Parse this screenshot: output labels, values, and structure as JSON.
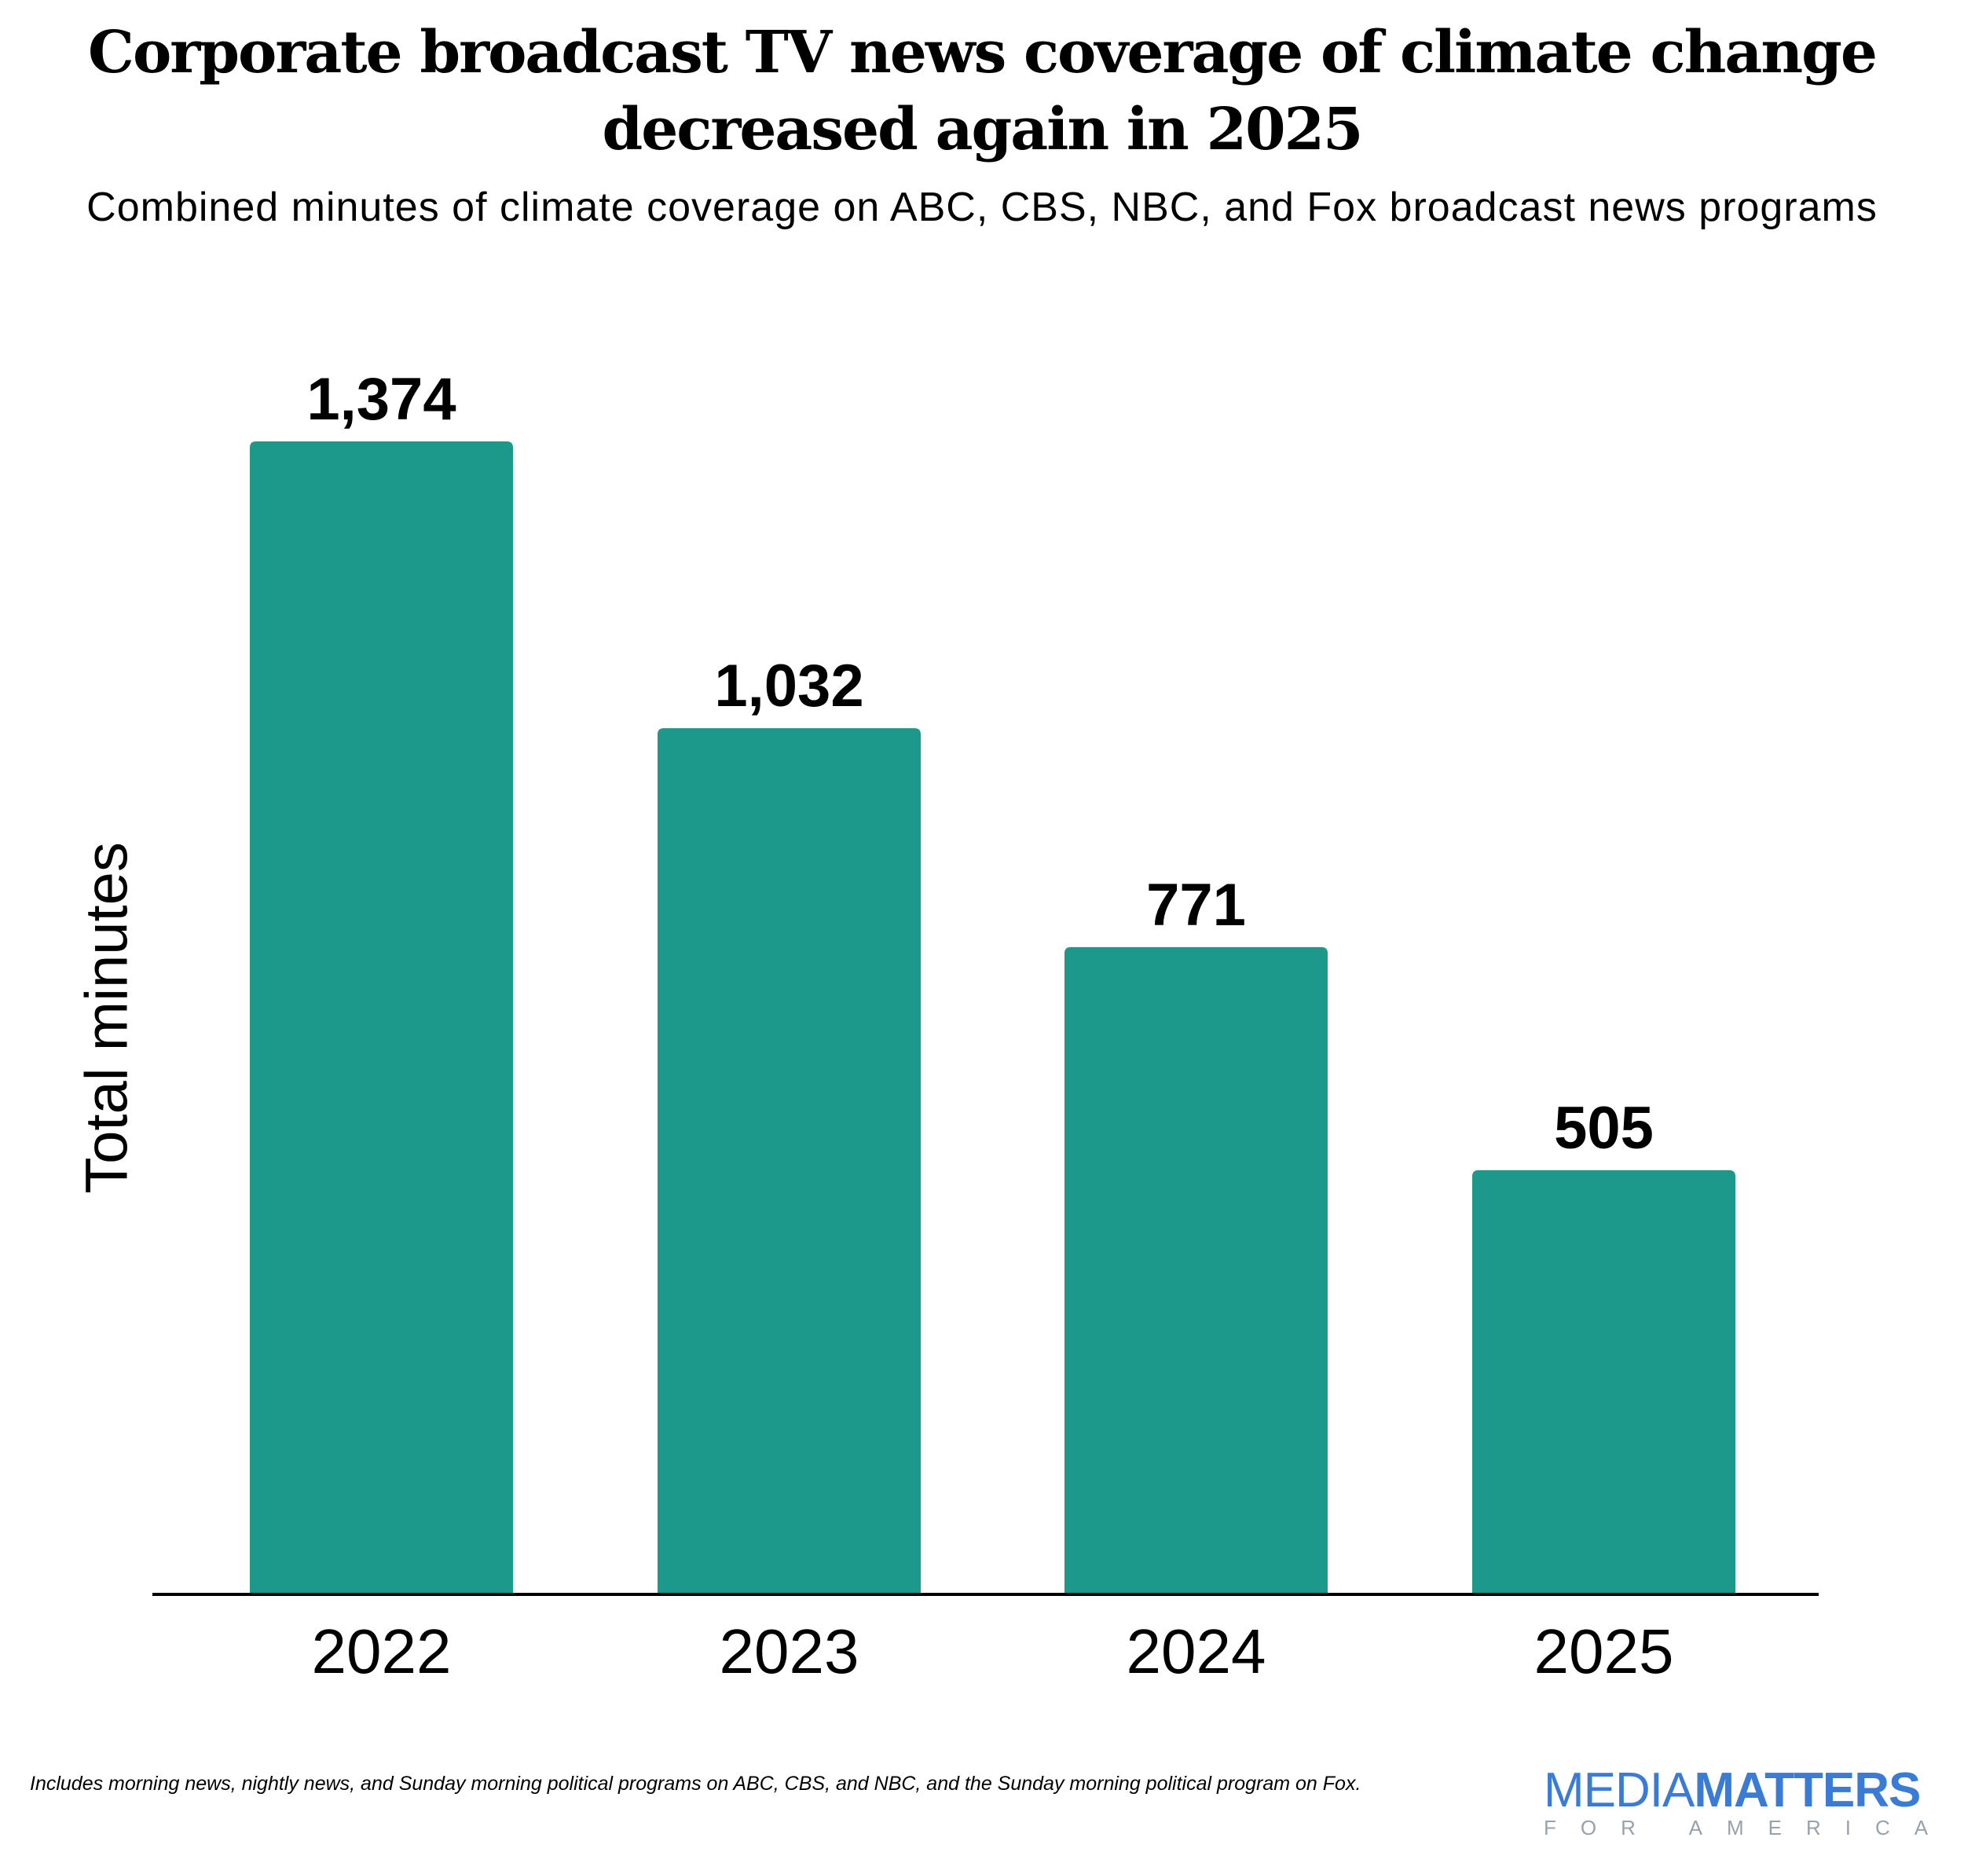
{
  "chart_data": {
    "type": "bar",
    "title": "Corporate broadcast TV news coverage of climate change decreased again in 2025",
    "subtitle": "Combined minutes of climate coverage on ABC, CBS, NBC, and Fox broadcast news programs",
    "xlabel": "",
    "ylabel": "Total minutes",
    "categories": [
      "2022",
      "2023",
      "2024",
      "2025"
    ],
    "values": [
      1374,
      1032,
      771,
      505
    ],
    "data_labels": [
      "1,374",
      "1,032",
      "771",
      "505"
    ],
    "ylim": [
      0,
      1374
    ],
    "grid": false,
    "bar_color": "#1c998a"
  },
  "footnote": "Includes morning news, nightly news, and Sunday morning political programs on ABC, CBS, and NBC, and the Sunday morning political program on Fox.",
  "logo": {
    "word1": "MEDIA",
    "word2": "MATTERS",
    "tagline": "FOR AMERICA",
    "color": "#3a7bd5"
  }
}
